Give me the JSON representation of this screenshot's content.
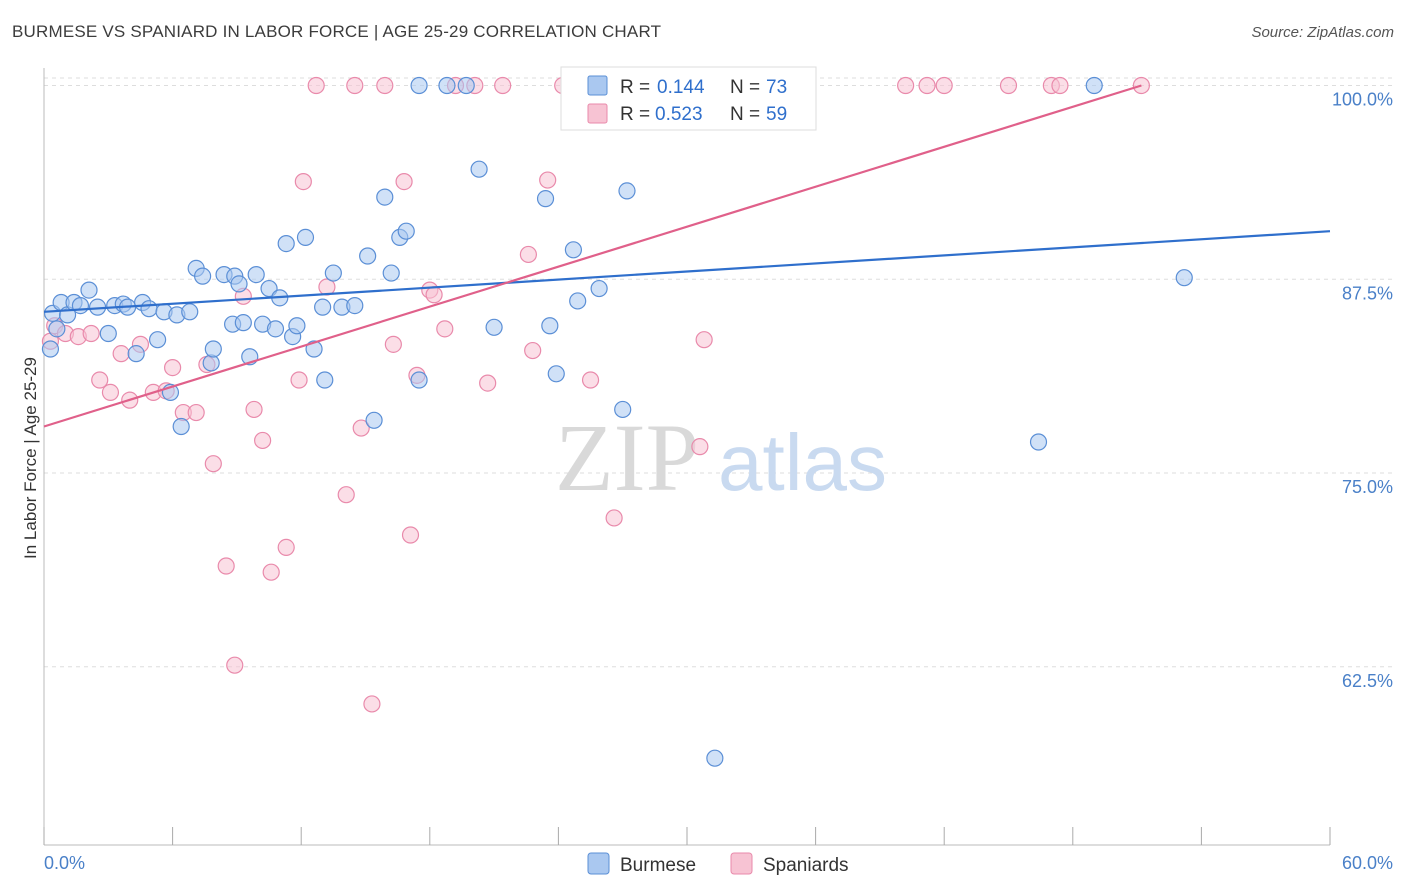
{
  "title": "BURMESE VS SPANIARD IN LABOR FORCE | AGE 25-29 CORRELATION CHART",
  "source": "Source: ZipAtlas.com",
  "watermark": {
    "zip": "ZIP",
    "atlas": "atlas"
  },
  "colors": {
    "burmese_fill": "#aac8f0",
    "burmese_stroke": "#5b8fd6",
    "burmese_line": "#2f6fcc",
    "spaniard_fill": "#f7c3d3",
    "spaniard_stroke": "#e98aab",
    "spaniard_line": "#e0608a",
    "tick_text": "#4a80c8",
    "grid": "#dddddd"
  },
  "legend": {
    "r_label": "R =",
    "n_label": "N =",
    "rows": [
      {
        "series": "Burmese",
        "r": "0.144",
        "n": "73"
      },
      {
        "series": "Spaniards",
        "r": "0.523",
        "n": "59"
      }
    ]
  },
  "chart_data": {
    "type": "scatter",
    "title": "BURMESE VS SPANIARD IN LABOR FORCE | AGE 25-29 CORRELATION CHART",
    "xlabel": "",
    "ylabel": "In Labor Force | Age 25-29",
    "xlim": [
      0,
      60
    ],
    "ylim": [
      51,
      101
    ],
    "x_tick_labels": [
      "0.0%",
      "60.0%"
    ],
    "y_ticks": [
      62.5,
      75.0,
      87.5,
      100.0
    ],
    "y_tick_labels": [
      "62.5%",
      "75.0%",
      "87.5%",
      "100.0%"
    ],
    "grid": true,
    "legend_position": "top-center (stats) and bottom-center (series)",
    "series": [
      {
        "name": "Burmese",
        "trend": {
          "x": [
            0,
            60
          ],
          "y": [
            85.4,
            90.6
          ]
        },
        "points": [
          [
            0.3,
            83.0
          ],
          [
            0.4,
            85.3
          ],
          [
            0.6,
            84.3
          ],
          [
            0.8,
            86.0
          ],
          [
            1.1,
            85.2
          ],
          [
            1.4,
            86.0
          ],
          [
            1.7,
            85.8
          ],
          [
            2.1,
            86.8
          ],
          [
            2.5,
            85.7
          ],
          [
            3.0,
            84.0
          ],
          [
            3.3,
            85.8
          ],
          [
            3.7,
            85.9
          ],
          [
            3.9,
            85.7
          ],
          [
            4.3,
            82.7
          ],
          [
            4.6,
            86.0
          ],
          [
            4.9,
            85.6
          ],
          [
            5.3,
            83.6
          ],
          [
            5.6,
            85.4
          ],
          [
            5.9,
            80.2
          ],
          [
            6.2,
            85.2
          ],
          [
            6.4,
            78.0
          ],
          [
            6.8,
            85.4
          ],
          [
            7.1,
            88.2
          ],
          [
            7.4,
            87.7
          ],
          [
            7.8,
            82.1
          ],
          [
            7.9,
            83.0
          ],
          [
            8.4,
            87.8
          ],
          [
            8.8,
            84.6
          ],
          [
            8.9,
            87.7
          ],
          [
            9.1,
            87.2
          ],
          [
            9.3,
            84.7
          ],
          [
            9.6,
            82.5
          ],
          [
            9.9,
            87.8
          ],
          [
            10.2,
            84.6
          ],
          [
            10.5,
            86.9
          ],
          [
            10.8,
            84.3
          ],
          [
            11.0,
            86.3
          ],
          [
            11.3,
            89.8
          ],
          [
            11.6,
            83.8
          ],
          [
            11.8,
            84.5
          ],
          [
            12.2,
            90.2
          ],
          [
            12.6,
            83.0
          ],
          [
            13.0,
            85.7
          ],
          [
            13.1,
            81.0
          ],
          [
            13.5,
            87.9
          ],
          [
            13.9,
            85.7
          ],
          [
            14.5,
            85.8
          ],
          [
            15.1,
            89.0
          ],
          [
            15.4,
            78.4
          ],
          [
            15.9,
            92.8
          ],
          [
            16.2,
            87.9
          ],
          [
            16.6,
            90.2
          ],
          [
            16.9,
            90.6
          ],
          [
            17.5,
            81.0
          ],
          [
            17.5,
            100.0
          ],
          [
            18.8,
            100.0
          ],
          [
            19.7,
            100.0
          ],
          [
            20.3,
            94.6
          ],
          [
            21.0,
            84.4
          ],
          [
            23.4,
            92.7
          ],
          [
            23.6,
            84.5
          ],
          [
            23.9,
            81.4
          ],
          [
            24.7,
            89.4
          ],
          [
            24.9,
            86.1
          ],
          [
            25.9,
            86.9
          ],
          [
            27.0,
            79.1
          ],
          [
            27.2,
            93.2
          ],
          [
            29.8,
            100.0
          ],
          [
            31.3,
            56.6
          ],
          [
            46.4,
            77.0
          ],
          [
            53.2,
            87.6
          ],
          [
            49.0,
            100.0
          ],
          [
            33.5,
            100.0
          ]
        ]
      },
      {
        "name": "Spaniards",
        "trend": {
          "x": [
            0,
            51.2
          ],
          "y": [
            78.0,
            100.0
          ]
        },
        "points": [
          [
            0.3,
            83.5
          ],
          [
            0.5,
            84.5
          ],
          [
            1.0,
            84.0
          ],
          [
            1.6,
            83.8
          ],
          [
            2.2,
            84.0
          ],
          [
            2.6,
            81.0
          ],
          [
            3.1,
            80.2
          ],
          [
            3.6,
            82.7
          ],
          [
            4.0,
            79.7
          ],
          [
            4.5,
            83.3
          ],
          [
            5.1,
            80.2
          ],
          [
            5.7,
            80.3
          ],
          [
            6.0,
            81.8
          ],
          [
            6.5,
            78.9
          ],
          [
            7.1,
            78.9
          ],
          [
            7.6,
            82.0
          ],
          [
            7.9,
            75.6
          ],
          [
            8.5,
            69.0
          ],
          [
            8.9,
            62.6
          ],
          [
            9.3,
            86.4
          ],
          [
            9.8,
            79.1
          ],
          [
            10.2,
            77.1
          ],
          [
            10.6,
            68.6
          ],
          [
            11.3,
            70.2
          ],
          [
            11.9,
            81.0
          ],
          [
            12.1,
            93.8
          ],
          [
            12.7,
            100.0
          ],
          [
            13.2,
            87.0
          ],
          [
            14.1,
            73.6
          ],
          [
            14.5,
            100.0
          ],
          [
            14.8,
            77.9
          ],
          [
            15.3,
            60.1
          ],
          [
            15.9,
            100.0
          ],
          [
            16.3,
            83.3
          ],
          [
            16.8,
            93.8
          ],
          [
            17.1,
            71.0
          ],
          [
            17.4,
            81.3
          ],
          [
            18.0,
            86.8
          ],
          [
            18.2,
            86.5
          ],
          [
            18.7,
            84.3
          ],
          [
            19.2,
            100.0
          ],
          [
            20.1,
            100.0
          ],
          [
            20.7,
            80.8
          ],
          [
            21.4,
            100.0
          ],
          [
            22.6,
            89.1
          ],
          [
            22.8,
            82.9
          ],
          [
            23.5,
            93.9
          ],
          [
            24.2,
            100.0
          ],
          [
            25.5,
            81.0
          ],
          [
            26.6,
            72.1
          ],
          [
            30.6,
            76.7
          ],
          [
            30.8,
            83.6
          ],
          [
            40.2,
            100.0
          ],
          [
            41.2,
            100.0
          ],
          [
            45.0,
            100.0
          ],
          [
            47.0,
            100.0
          ],
          [
            47.4,
            100.0
          ],
          [
            51.2,
            100.0
          ],
          [
            42.0,
            100.0
          ]
        ]
      }
    ]
  }
}
